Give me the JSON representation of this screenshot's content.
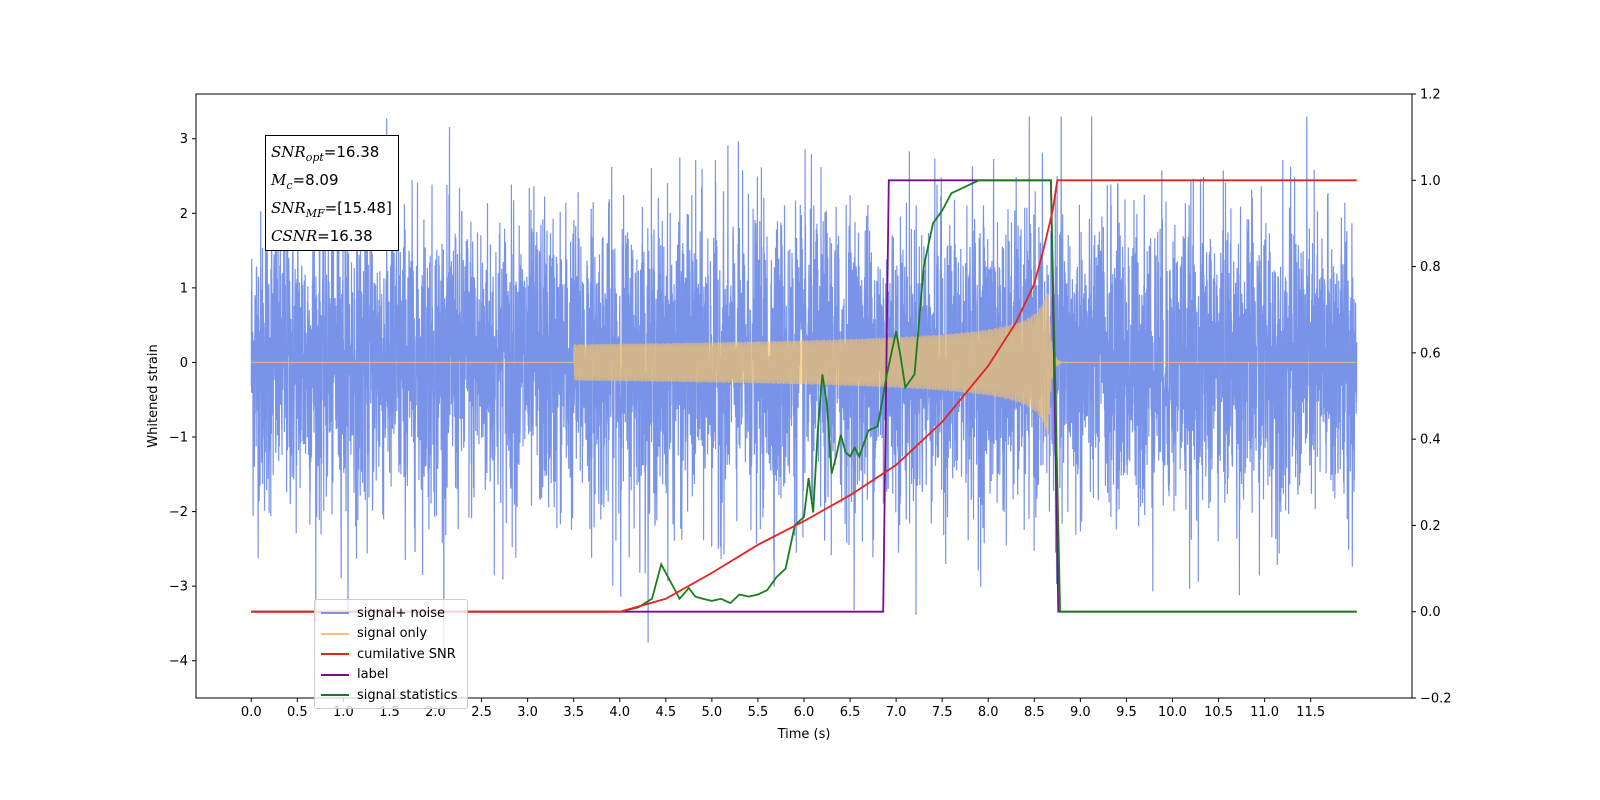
{
  "chart_data": {
    "type": "line",
    "xlabel": "Time (s)",
    "ylabel": "Whitened strain",
    "xlim": [
      -0.6,
      12.6
    ],
    "ylim": [
      -4.5,
      3.6
    ],
    "y2lim": [
      -0.2,
      1.2
    ],
    "x_ticks": [
      "0.0",
      "0.5",
      "1.0",
      "1.5",
      "2.0",
      "2.5",
      "3.0",
      "3.5",
      "4.0",
      "4.5",
      "5.0",
      "5.5",
      "6.0",
      "6.5",
      "7.0",
      "7.5",
      "8.0",
      "8.5",
      "9.0",
      "9.5",
      "10.0",
      "10.5",
      "11.0",
      "11.5"
    ],
    "y_ticks": [
      "−4",
      "−3",
      "−2",
      "−1",
      "0",
      "1",
      "2",
      "3"
    ],
    "y2_ticks": [
      "−0.2",
      "0.0",
      "0.2",
      "0.4",
      "0.6",
      "0.8",
      "1.0",
      "1.2"
    ],
    "grid": false,
    "legend_position": "lower-left",
    "annotation": {
      "snr_opt": "=16.38",
      "mc": "=8.09",
      "snr_mf": "=[15.48]",
      "csnr": "=16.38"
    },
    "series": [
      {
        "name": "signal+ noise",
        "color": "#7893e8",
        "axis": "left",
        "description_values": "white noise, std ~1.0, peaks ~±3.3, 0.0–12.0 s"
      },
      {
        "name": "signal only",
        "color": "#f5c36a",
        "axis": "left",
        "chirp": {
          "start": 3.5,
          "merger": 8.65,
          "end": 8.8,
          "peak_amplitude": 1.05
        }
      },
      {
        "name": "cumilative SNR",
        "color": "#e8231f",
        "axis": "right",
        "x": [
          0.0,
          4.0,
          4.5,
          5.0,
          5.5,
          6.0,
          6.5,
          7.0,
          7.5,
          8.0,
          8.3,
          8.5,
          8.6,
          8.7,
          8.75,
          9.0,
          12.0
        ],
        "y": [
          0.0,
          0.0,
          0.03,
          0.09,
          0.155,
          0.21,
          0.27,
          0.34,
          0.44,
          0.57,
          0.67,
          0.76,
          0.84,
          0.93,
          1.0,
          1.0,
          1.0
        ]
      },
      {
        "name": "label",
        "color": "#7a0d8f",
        "axis": "right",
        "x": [
          0.0,
          6.86,
          6.92,
          8.68,
          8.76,
          12.0
        ],
        "y": [
          0.0,
          0.0,
          1.0,
          1.0,
          0.0,
          0.0
        ]
      },
      {
        "name": "signal statistics",
        "color": "#1a7f1a",
        "axis": "right",
        "x": [
          0.0,
          4.0,
          4.2,
          4.35,
          4.45,
          4.55,
          4.65,
          4.75,
          4.82,
          4.9,
          5.0,
          5.1,
          5.2,
          5.3,
          5.4,
          5.5,
          5.6,
          5.7,
          5.8,
          5.9,
          6.0,
          6.05,
          6.1,
          6.15,
          6.2,
          6.25,
          6.3,
          6.35,
          6.4,
          6.45,
          6.5,
          6.55,
          6.6,
          6.7,
          6.8,
          6.9,
          7.0,
          7.05,
          7.1,
          7.2,
          7.3,
          7.4,
          7.5,
          7.6,
          7.7,
          7.8,
          7.9,
          8.0,
          8.5,
          8.68,
          8.78,
          12.0
        ],
        "y": [
          0.0,
          0.0,
          0.01,
          0.03,
          0.11,
          0.07,
          0.03,
          0.055,
          0.035,
          0.03,
          0.025,
          0.03,
          0.02,
          0.04,
          0.035,
          0.04,
          0.05,
          0.08,
          0.1,
          0.2,
          0.22,
          0.31,
          0.23,
          0.42,
          0.55,
          0.48,
          0.32,
          0.36,
          0.41,
          0.37,
          0.36,
          0.38,
          0.36,
          0.42,
          0.43,
          0.55,
          0.65,
          0.59,
          0.52,
          0.55,
          0.8,
          0.9,
          0.93,
          0.97,
          0.98,
          0.99,
          1.0,
          1.0,
          1.0,
          1.0,
          0.0,
          0.0
        ]
      }
    ],
    "legend": [
      {
        "label": "signal+ noise",
        "color": "#7893e8"
      },
      {
        "label": "signal only",
        "color": "#f5c36a"
      },
      {
        "label": "cumilative SNR",
        "color": "#e8231f"
      },
      {
        "label": "label",
        "color": "#7a0d8f"
      },
      {
        "label": "signal statistics",
        "color": "#1a7f1a"
      }
    ]
  }
}
